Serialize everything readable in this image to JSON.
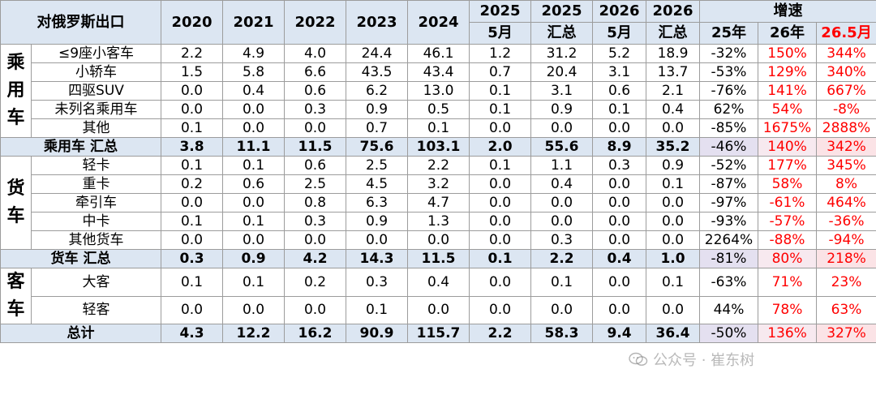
{
  "header": {
    "title": "对俄罗斯出口",
    "years": [
      "2020",
      "2021",
      "2022",
      "2023",
      "2024"
    ],
    "col2025_may_top": "2025",
    "col2025_may_bottom": "5月",
    "col2025_sum_top": "2025",
    "col2025_sum_bottom": "汇总",
    "col2026_may_top": "2026",
    "col2026_may_bottom": "5月",
    "col2026_sum_top": "2026",
    "col2026_sum_bottom": "汇总",
    "growth_title": "增速",
    "growth_cols": [
      "25年",
      "26年",
      "26.5月"
    ]
  },
  "groups": {
    "passenger": "乘用车",
    "truck": "货车",
    "bus": "客车"
  },
  "rows": [
    {
      "name": "≤9座小客车",
      "v": [
        "2.2",
        "4.9",
        "4.0",
        "24.4",
        "46.1",
        "1.2",
        "31.2",
        "5.2",
        "18.9"
      ],
      "g": [
        "-32%",
        "150%",
        "344%"
      ]
    },
    {
      "name": "小轿车",
      "v": [
        "1.5",
        "5.8",
        "6.6",
        "43.5",
        "43.4",
        "0.7",
        "20.4",
        "3.1",
        "13.7"
      ],
      "g": [
        "-53%",
        "129%",
        "340%"
      ]
    },
    {
      "name": "四驱SUV",
      "v": [
        "0.0",
        "0.4",
        "0.6",
        "6.2",
        "13.0",
        "0.1",
        "3.1",
        "0.6",
        "2.1"
      ],
      "g": [
        "-76%",
        "141%",
        "667%"
      ]
    },
    {
      "name": "未列名乘用车",
      "v": [
        "0.0",
        "0.0",
        "0.3",
        "0.9",
        "0.5",
        "0.1",
        "0.9",
        "0.1",
        "0.4"
      ],
      "g": [
        "62%",
        "54%",
        "-8%"
      ]
    },
    {
      "name": "其他",
      "v": [
        "0.1",
        "0.0",
        "0.0",
        "0.7",
        "0.1",
        "0.0",
        "0.0",
        "0.0",
        "0.0"
      ],
      "g": [
        "-85%",
        "1675%",
        "2888%"
      ]
    },
    {
      "name": "乘用车 汇总",
      "v": [
        "3.8",
        "11.1",
        "11.5",
        "75.6",
        "103.1",
        "2.0",
        "55.6",
        "8.9",
        "35.2"
      ],
      "g": [
        "-46%",
        "140%",
        "342%"
      ]
    },
    {
      "name": "轻卡",
      "v": [
        "0.1",
        "0.1",
        "0.6",
        "2.5",
        "2.2",
        "0.1",
        "1.1",
        "0.3",
        "0.9"
      ],
      "g": [
        "-52%",
        "177%",
        "345%"
      ]
    },
    {
      "name": "重卡",
      "v": [
        "0.2",
        "0.6",
        "2.5",
        "4.5",
        "3.2",
        "0.0",
        "0.4",
        "0.0",
        "0.1"
      ],
      "g": [
        "-87%",
        "58%",
        "8%"
      ]
    },
    {
      "name": "牵引车",
      "v": [
        "0.0",
        "0.0",
        "0.8",
        "6.3",
        "4.7",
        "0.0",
        "0.0",
        "0.0",
        "0.0"
      ],
      "g": [
        "-97%",
        "-61%",
        "464%"
      ]
    },
    {
      "name": "中卡",
      "v": [
        "0.1",
        "0.1",
        "0.3",
        "0.9",
        "1.3",
        "0.0",
        "0.0",
        "0.0",
        "0.0"
      ],
      "g": [
        "-93%",
        "-57%",
        "-36%"
      ]
    },
    {
      "name": "其他货车",
      "v": [
        "0.0",
        "0.0",
        "0.0",
        "0.0",
        "0.0",
        "0.0",
        "0.3",
        "0.0",
        "0.0"
      ],
      "g": [
        "2264%",
        "-88%",
        "-94%"
      ]
    },
    {
      "name": "货车 汇总",
      "v": [
        "0.3",
        "0.9",
        "4.2",
        "14.3",
        "11.5",
        "0.1",
        "2.2",
        "0.4",
        "1.0"
      ],
      "g": [
        "-81%",
        "80%",
        "218%"
      ]
    },
    {
      "name": "大客",
      "v": [
        "0.1",
        "0.1",
        "0.2",
        "0.3",
        "0.4",
        "0.0",
        "0.1",
        "0.0",
        "0.1"
      ],
      "g": [
        "-63%",
        "71%",
        "23%"
      ]
    },
    {
      "name": "轻客",
      "v": [
        "0.0",
        "0.0",
        "0.0",
        "0.1",
        "0.0",
        "0.0",
        "0.0",
        "0.0",
        "0.0"
      ],
      "g": [
        "44%",
        "78%",
        "63%"
      ]
    },
    {
      "name": "总计",
      "v": [
        "4.3",
        "12.2",
        "16.2",
        "90.9",
        "115.7",
        "2.2",
        "58.3",
        "9.4",
        "36.4"
      ],
      "g": [
        "-50%",
        "136%",
        "327%"
      ]
    }
  ],
  "watermark": {
    "text": "公众号 · 崔东树",
    "icon": "wechat-icon"
  }
}
